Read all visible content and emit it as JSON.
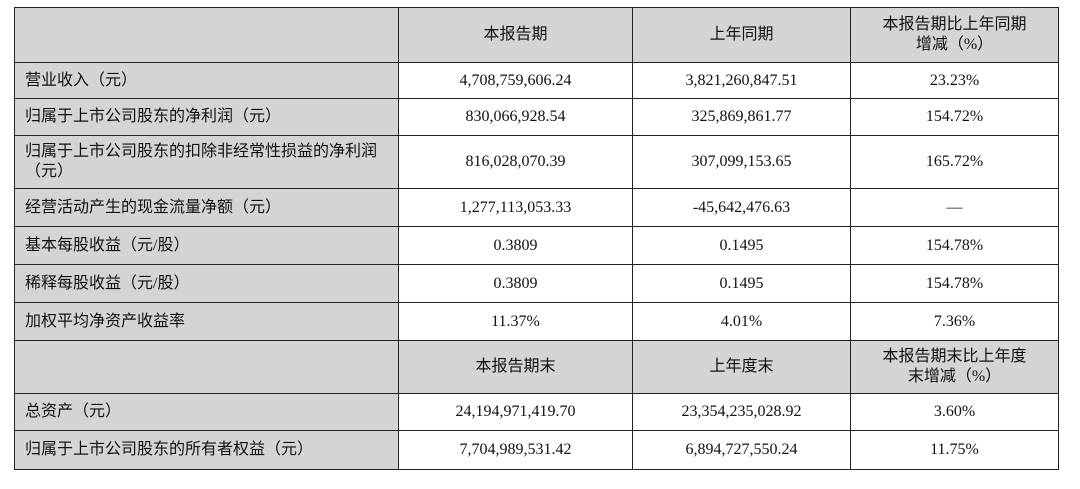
{
  "header1": [
    "",
    "本报告期",
    "上年同期",
    "本报告期比上年同期增减（%）"
  ],
  "rows1": [
    {
      "label": "营业收入（元）",
      "current": "4,708,759,606.24",
      "prior": "3,821,260,847.51",
      "change": "23.23%"
    },
    {
      "label": "归属于上市公司股东的净利润（元）",
      "current": "830,066,928.54",
      "prior": "325,869,861.77",
      "change": "154.72%"
    },
    {
      "label": "归属于上市公司股东的扣除非经常性损益的净利润（元）",
      "current": "816,028,070.39",
      "prior": "307,099,153.65",
      "change": "165.72%"
    },
    {
      "label": "经营活动产生的现金流量净额（元）",
      "current": "1,277,113,053.33",
      "prior": "-45,642,476.63",
      "change": "—"
    },
    {
      "label": "基本每股收益（元/股）",
      "current": "0.3809",
      "prior": "0.1495",
      "change": "154.78%"
    },
    {
      "label": "稀释每股收益（元/股）",
      "current": "0.3809",
      "prior": "0.1495",
      "change": "154.78%"
    },
    {
      "label": "加权平均净资产收益率",
      "current": "11.37%",
      "prior": "4.01%",
      "change": "7.36%"
    }
  ],
  "header2": [
    "",
    "本报告期末",
    "上年度末",
    "本报告期末比上年度末增减（%）"
  ],
  "rows2": [
    {
      "label": "总资产（元）",
      "current": "24,194,971,419.70",
      "prior": "23,354,235,028.92",
      "change": "3.60%"
    },
    {
      "label": "归属于上市公司股东的所有者权益（元）",
      "current": "7,704,989,531.42",
      "prior": "6,894,727,550.24",
      "change": "11.75%"
    }
  ]
}
